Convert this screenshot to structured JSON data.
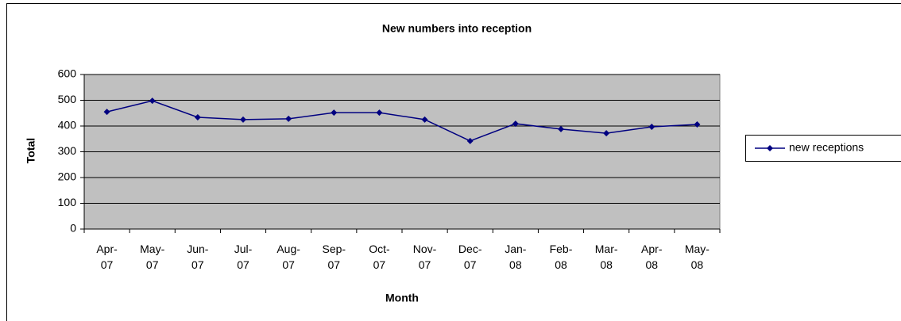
{
  "chart_data": {
    "type": "line",
    "title": "New numbers into reception",
    "x_label": "Month",
    "y_label": "Total",
    "categories": [
      "Apr-07",
      "May-07",
      "Jun-07",
      "Jul-07",
      "Aug-07",
      "Sep-07",
      "Oct-07",
      "Nov-07",
      "Dec-07",
      "Jan-08",
      "Feb-08",
      "Mar-08",
      "Apr-08",
      "May-08"
    ],
    "series": [
      {
        "name": "new receptions",
        "color": "#000080",
        "values": [
          455,
          498,
          434,
          425,
          428,
          452,
          452,
          425,
          342,
          409,
          388,
          372,
          397,
          406
        ]
      }
    ],
    "ylim": [
      0,
      600
    ],
    "yticks": [
      0,
      100,
      200,
      300,
      400,
      500,
      600
    ],
    "grid": true,
    "legend": "right"
  }
}
